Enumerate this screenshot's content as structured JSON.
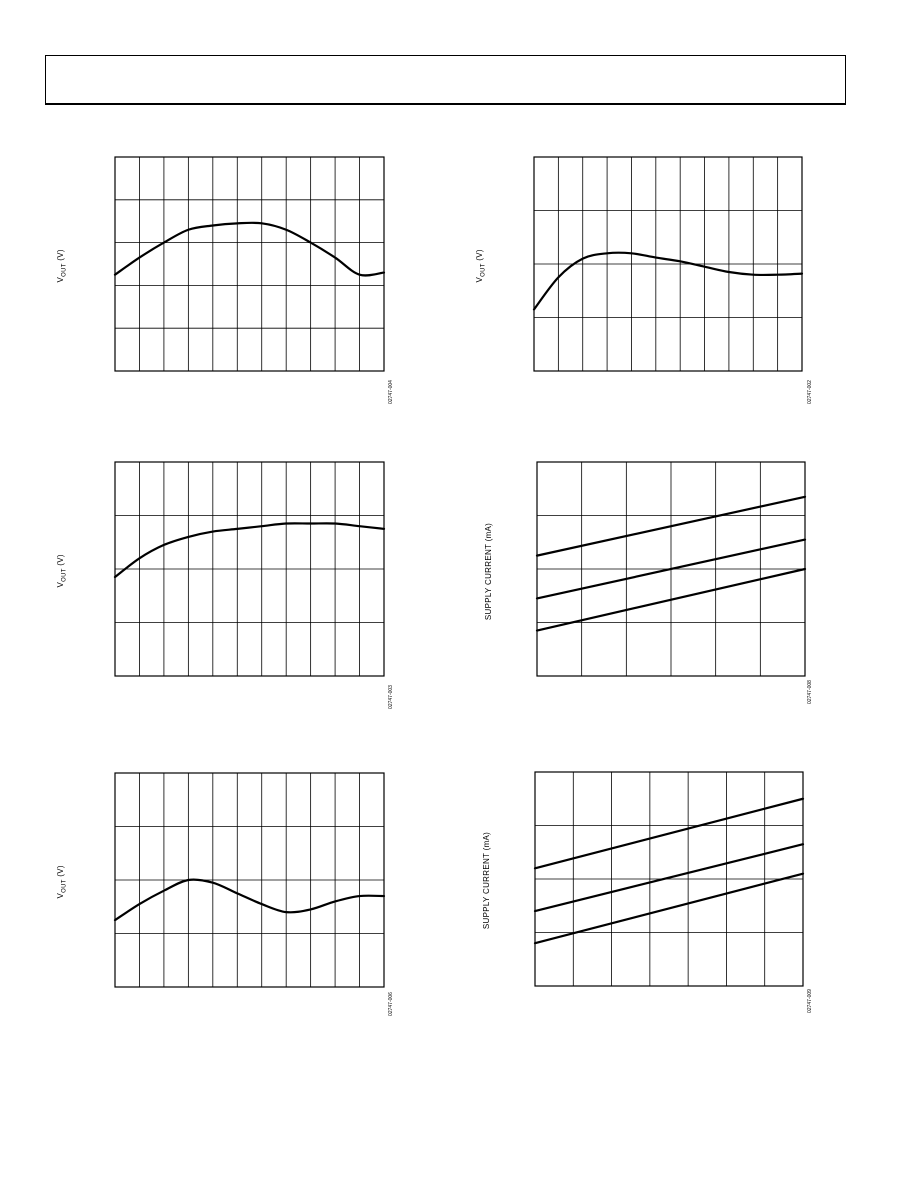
{
  "header": {
    "title": ""
  },
  "chart_data": [
    {
      "type": "line",
      "ylabel": "V_OUT (V)",
      "figure_id": "02747-004",
      "grid": {
        "cols": 11,
        "rows": 5
      },
      "xlim": [
        0,
        11
      ],
      "ylim": [
        0,
        5
      ],
      "series": [
        {
          "x": [
            0,
            1,
            2,
            3,
            4,
            5,
            6,
            7,
            8,
            9,
            10,
            11
          ],
          "y": [
            2.25,
            2.65,
            3.0,
            3.3,
            3.4,
            3.45,
            3.45,
            3.3,
            3.0,
            2.65,
            2.25,
            2.3
          ]
        }
      ]
    },
    {
      "type": "line",
      "ylabel": "V_OUT (V)",
      "figure_id": "02747-002",
      "grid": {
        "cols": 11,
        "rows": 4
      },
      "xlim": [
        0,
        11
      ],
      "ylim": [
        0,
        4
      ],
      "series": [
        {
          "x": [
            0,
            1,
            2,
            3,
            4,
            5,
            6,
            7,
            8,
            9,
            10,
            11
          ],
          "y": [
            1.15,
            1.75,
            2.1,
            2.2,
            2.2,
            2.12,
            2.05,
            1.95,
            1.85,
            1.8,
            1.8,
            1.82
          ]
        }
      ]
    },
    {
      "type": "line",
      "ylabel": "V_OUT (V)",
      "figure_id": "02747-003",
      "grid": {
        "cols": 11,
        "rows": 4
      },
      "xlim": [
        0,
        11
      ],
      "ylim": [
        0,
        4
      ],
      "series": [
        {
          "x": [
            0,
            1,
            2,
            3,
            4,
            5,
            6,
            7,
            8,
            9,
            10,
            11
          ],
          "y": [
            1.85,
            2.2,
            2.45,
            2.6,
            2.7,
            2.75,
            2.8,
            2.85,
            2.85,
            2.85,
            2.8,
            2.75
          ]
        }
      ]
    },
    {
      "type": "line",
      "ylabel": "SUPPLY CURRENT (mA)",
      "figure_id": "02747-008",
      "grid": {
        "cols": 6,
        "rows": 4
      },
      "xlim": [
        0,
        6
      ],
      "ylim": [
        0,
        4
      ],
      "series": [
        {
          "x": [
            0,
            6
          ],
          "y": [
            2.25,
            3.35
          ]
        },
        {
          "x": [
            0,
            6
          ],
          "y": [
            1.45,
            2.55
          ]
        },
        {
          "x": [
            0,
            6
          ],
          "y": [
            0.85,
            2.0
          ]
        }
      ]
    },
    {
      "type": "line",
      "ylabel": "V_OUT (V)",
      "figure_id": "02747-006",
      "grid": {
        "cols": 11,
        "rows": 4
      },
      "xlim": [
        0,
        11
      ],
      "ylim": [
        0,
        4
      ],
      "series": [
        {
          "x": [
            0,
            1,
            2,
            3,
            4,
            5,
            6,
            7,
            8,
            9,
            10,
            11
          ],
          "y": [
            1.25,
            1.55,
            1.8,
            2.0,
            1.95,
            1.75,
            1.55,
            1.4,
            1.45,
            1.6,
            1.7,
            1.7
          ]
        }
      ]
    },
    {
      "type": "line",
      "ylabel": "SUPPLY CURRENT (mA)",
      "figure_id": "02747-009",
      "grid": {
        "cols": 7,
        "rows": 4
      },
      "xlim": [
        0,
        7
      ],
      "ylim": [
        0,
        4
      ],
      "series": [
        {
          "x": [
            0,
            7
          ],
          "y": [
            2.2,
            3.5
          ]
        },
        {
          "x": [
            0,
            7
          ],
          "y": [
            1.4,
            2.65
          ]
        },
        {
          "x": [
            0,
            7
          ],
          "y": [
            0.8,
            2.1
          ]
        }
      ]
    }
  ]
}
